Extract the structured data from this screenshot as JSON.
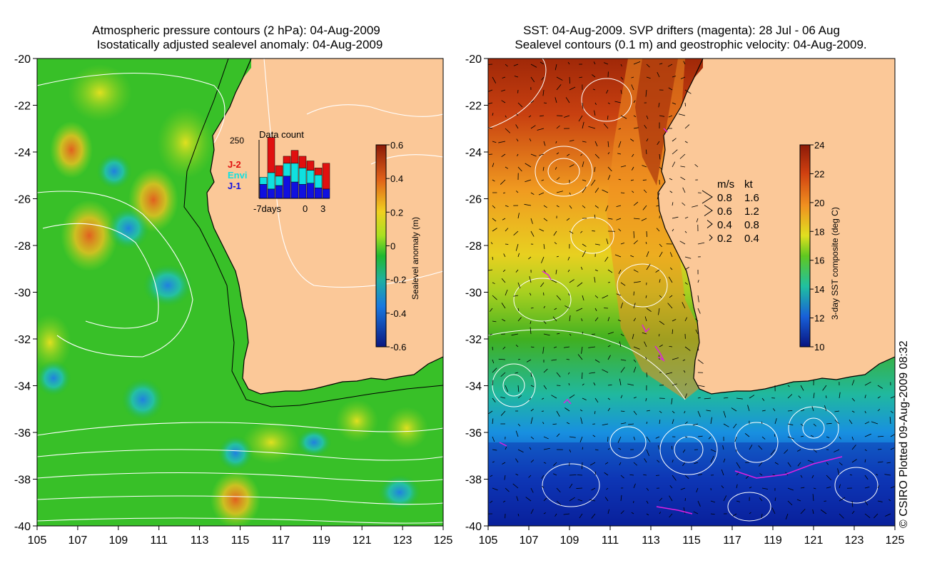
{
  "left_panel": {
    "title_line1": "Atmospheric pressure contours (2 hPa): 04-Aug-2009",
    "title_line2": "Isostatically adjusted sealevel anomaly: 04-Aug-2009",
    "x_ticks": [
      "105",
      "107",
      "109",
      "111",
      "113",
      "115",
      "117",
      "119",
      "121",
      "123",
      "125"
    ],
    "y_ticks": [
      "-20",
      "-22",
      "-24",
      "-26",
      "-28",
      "-30",
      "-32",
      "-34",
      "-36",
      "-38",
      "-40"
    ],
    "colorbar": {
      "label": "Sealevel anomaly (m)",
      "ticks": [
        "0.6",
        "0.4",
        "0.2",
        "0",
        "-0.2",
        "-0.4",
        "-0.6"
      ],
      "range": [
        -0.6,
        0.6
      ]
    },
    "inset": {
      "title": "Data count",
      "y_max_label": "250",
      "x_labels": [
        "-7days",
        "0",
        "3"
      ],
      "legend": [
        {
          "label": "J-2",
          "color": "#e01010"
        },
        {
          "label": "Envi",
          "color": "#10e0e0"
        },
        {
          "label": "J-1",
          "color": "#1010e0"
        }
      ],
      "bars": {
        "j1": [
          60,
          40,
          55,
          95,
          70,
          60,
          65,
          45,
          40
        ],
        "envi": [
          30,
          70,
          40,
          55,
          80,
          70,
          55,
          55,
          0
        ],
        "j2": [
          0,
          150,
          45,
          30,
          55,
          50,
          40,
          30,
          110
        ]
      },
      "y_limit": 250
    }
  },
  "right_panel": {
    "title_line1": "SST: 04-Aug-2009. SVP drifters (magenta): 28 Jul - 06 Aug",
    "title_line2": "Sealevel contours (0.1 m) and geostrophic velocity: 04-Aug-2009.",
    "x_ticks": [
      "105",
      "107",
      "109",
      "111",
      "113",
      "115",
      "117",
      "119",
      "121",
      "123",
      "125"
    ],
    "y_ticks": [
      "-20",
      "-22",
      "-24",
      "-26",
      "-28",
      "-30",
      "-32",
      "-34",
      "-36",
      "-38",
      "-40"
    ],
    "colorbar": {
      "label": "3-day SST composite (deg C)",
      "ticks": [
        "24",
        "22",
        "20",
        "18",
        "16",
        "14",
        "12",
        "10"
      ],
      "range": [
        10,
        24
      ]
    },
    "velocity_legend": {
      "header_ms": "m/s",
      "header_kt": "kt",
      "rows": [
        {
          "ms": "0.8",
          "kt": "1.6"
        },
        {
          "ms": "0.6",
          "kt": "1.2"
        },
        {
          "ms": "0.4",
          "kt": "0.8"
        },
        {
          "ms": "0.2",
          "kt": "0.4"
        }
      ]
    }
  },
  "credit": "© CSIRO Plotted 09-Aug-2009 08:32",
  "colors": {
    "land": "#fbc898",
    "ocean_anomaly_base": "#20b820",
    "sst_warm": "#b82808",
    "sst_cold": "#0828a0",
    "contour": "#ffffff",
    "drifter": "#e020e0"
  }
}
